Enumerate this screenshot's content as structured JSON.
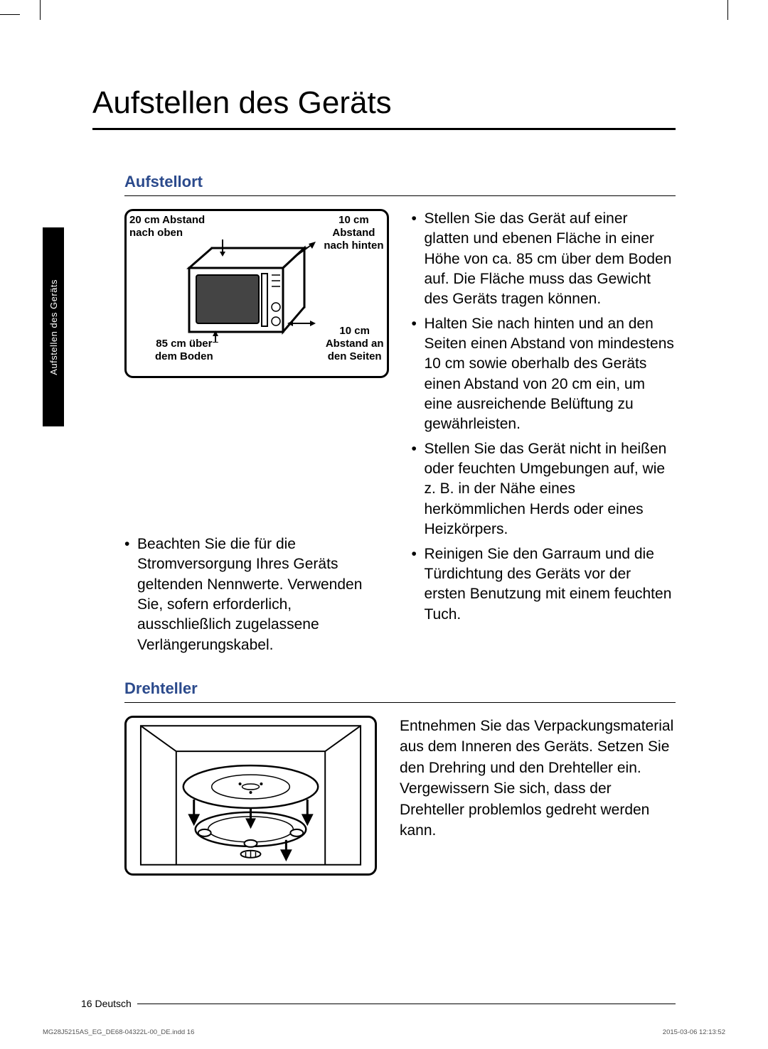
{
  "colors": {
    "accent": "#2b4a8c",
    "text": "#000000",
    "bg": "#ffffff"
  },
  "mainTitle": "Aufstellen des Geräts",
  "sideTab": "Aufstellen des Geräts",
  "section1": {
    "title": "Aufstellort",
    "diagram": {
      "label_top_left": "20 cm Abstand\nnach oben",
      "label_top_right": "10 cm\nAbstand\nnach hinten",
      "label_mid_right": "10 cm\nAbstand an\nden Seiten",
      "label_bottom_left": "85 cm über\ndem Boden"
    },
    "leftBullets": [
      "Beachten Sie die für die Stromversorgung Ihres Geräts geltenden Nennwerte. Verwenden Sie, sofern erforderlich, ausschließlich zugelassene Verlängerungskabel."
    ],
    "rightBullets": [
      "Stellen Sie das Gerät auf einer glatten und ebenen Fläche in einer Höhe von ca. 85 cm über dem Boden auf. Die Fläche muss das Gewicht des Geräts tragen können.",
      "Halten Sie nach hinten und an den Seiten einen Abstand von mindestens 10 cm sowie oberhalb des Geräts einen Abstand von 20 cm ein, um eine ausreichende Belüftung zu gewährleisten.",
      "Stellen Sie das Gerät nicht in heißen oder feuchten Umgebungen auf, wie z. B. in der Nähe eines herkömmlichen Herds oder eines Heizkörpers.",
      "Reinigen Sie den Garraum und die Türdichtung des Geräts vor der ersten Benutzung mit einem feuchten Tuch."
    ]
  },
  "section2": {
    "title": "Drehteller",
    "text": "Entnehmen Sie das Verpackungsmaterial aus dem Inneren des Geräts. Setzen Sie den Drehring und den Drehteller ein. Vergewissern Sie sich, dass der Drehteller problemlos gedreht werden kann."
  },
  "footer": {
    "pageNum": "16",
    "lang": "Deutsch"
  },
  "meta": {
    "file": "MG28J5215AS_EG_DE68-04322L-00_DE.indd   16",
    "timestamp": "2015-03-06   12:13:52"
  }
}
